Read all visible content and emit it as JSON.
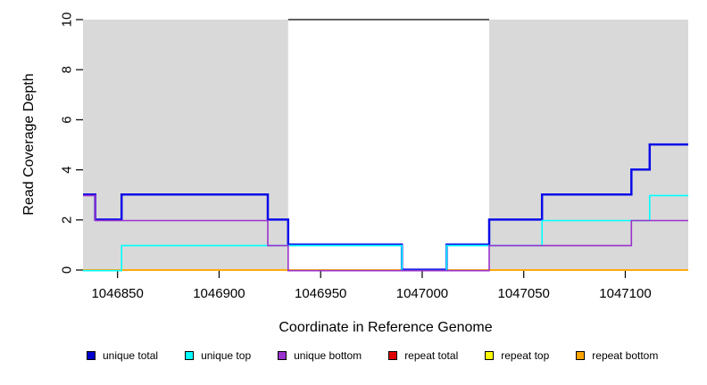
{
  "figure": {
    "background_color": "#FFFFFF",
    "plot_background_left_right": "#D9D9D9",
    "plot_background_middle": "#FFFFFF"
  },
  "chart_data": {
    "type": "line",
    "step": true,
    "title": "",
    "xlabel": "Coordinate in Reference Genome",
    "ylabel": "Read Coverage Depth",
    "xlim": [
      1046833,
      1047131
    ],
    "ylim": [
      0,
      10
    ],
    "x_ticks": [
      1046850,
      1046900,
      1046950,
      1047000,
      1047050,
      1047100
    ],
    "y_ticks": [
      0,
      2,
      4,
      6,
      8,
      10
    ],
    "grid": false,
    "legend_position": "bottom",
    "shaded_regions": [
      {
        "x_start": 1046833,
        "x_end": 1046934,
        "color": "#D9D9D9"
      },
      {
        "x_start": 1047033,
        "x_end": 1047131,
        "color": "#D9D9D9"
      }
    ],
    "annotation_lines": [
      {
        "x_start": 1046934,
        "x_end": 1047033,
        "y": 10,
        "color": "#000000"
      }
    ],
    "draw_order": [
      3,
      4,
      5,
      0,
      1,
      2
    ],
    "series": [
      {
        "name": "unique total",
        "color": "#0B0BE8",
        "line_width": 2.5,
        "dy": -0.4,
        "steps": [
          [
            1046833,
            3
          ],
          [
            1046839,
            2
          ],
          [
            1046852,
            3
          ],
          [
            1046924,
            2
          ],
          [
            1046934,
            1
          ],
          [
            1046990,
            0
          ],
          [
            1047012,
            1
          ],
          [
            1047033,
            2
          ],
          [
            1047059,
            3
          ],
          [
            1047103,
            4
          ],
          [
            1047112,
            5
          ],
          [
            1047131,
            5
          ]
        ]
      },
      {
        "name": "unique top",
        "color": "#00FFFF",
        "line_width": 1.6,
        "dy": 0.7,
        "steps": [
          [
            1046833,
            0
          ],
          [
            1046852,
            1
          ],
          [
            1046990,
            0
          ],
          [
            1047012,
            1
          ],
          [
            1047059,
            2
          ],
          [
            1047112,
            3
          ],
          [
            1047131,
            3
          ]
        ]
      },
      {
        "name": "unique bottom",
        "color": "#9932CC",
        "line_width": 1.6,
        "dy": 0.7,
        "steps": [
          [
            1046833,
            3
          ],
          [
            1046839,
            2
          ],
          [
            1046924,
            1
          ],
          [
            1046934,
            0
          ],
          [
            1047033,
            1
          ],
          [
            1047103,
            2
          ],
          [
            1047131,
            2
          ]
        ]
      },
      {
        "name": "repeat total",
        "color": "#E00000",
        "line_width": 1.6,
        "dy": 0,
        "steps": [
          [
            1046833,
            0
          ],
          [
            1047131,
            0
          ]
        ]
      },
      {
        "name": "repeat top",
        "color": "#FFFF00",
        "line_width": 1.6,
        "dy": 0,
        "steps": [
          [
            1046833,
            0
          ],
          [
            1047131,
            0
          ]
        ]
      },
      {
        "name": "repeat bottom",
        "color": "#FFA500",
        "line_width": 1.6,
        "dy": 0,
        "steps": [
          [
            1046833,
            0
          ],
          [
            1047131,
            0
          ]
        ]
      }
    ]
  },
  "legend": {
    "items": [
      {
        "label": "unique total",
        "color": "#0000CD"
      },
      {
        "label": "unique top",
        "color": "#00FFFF"
      },
      {
        "label": "unique bottom",
        "color": "#9932CC"
      },
      {
        "label": "repeat total",
        "color": "#E00000"
      },
      {
        "label": "repeat top",
        "color": "#FFFF00"
      },
      {
        "label": "repeat bottom",
        "color": "#FFA500"
      }
    ]
  }
}
